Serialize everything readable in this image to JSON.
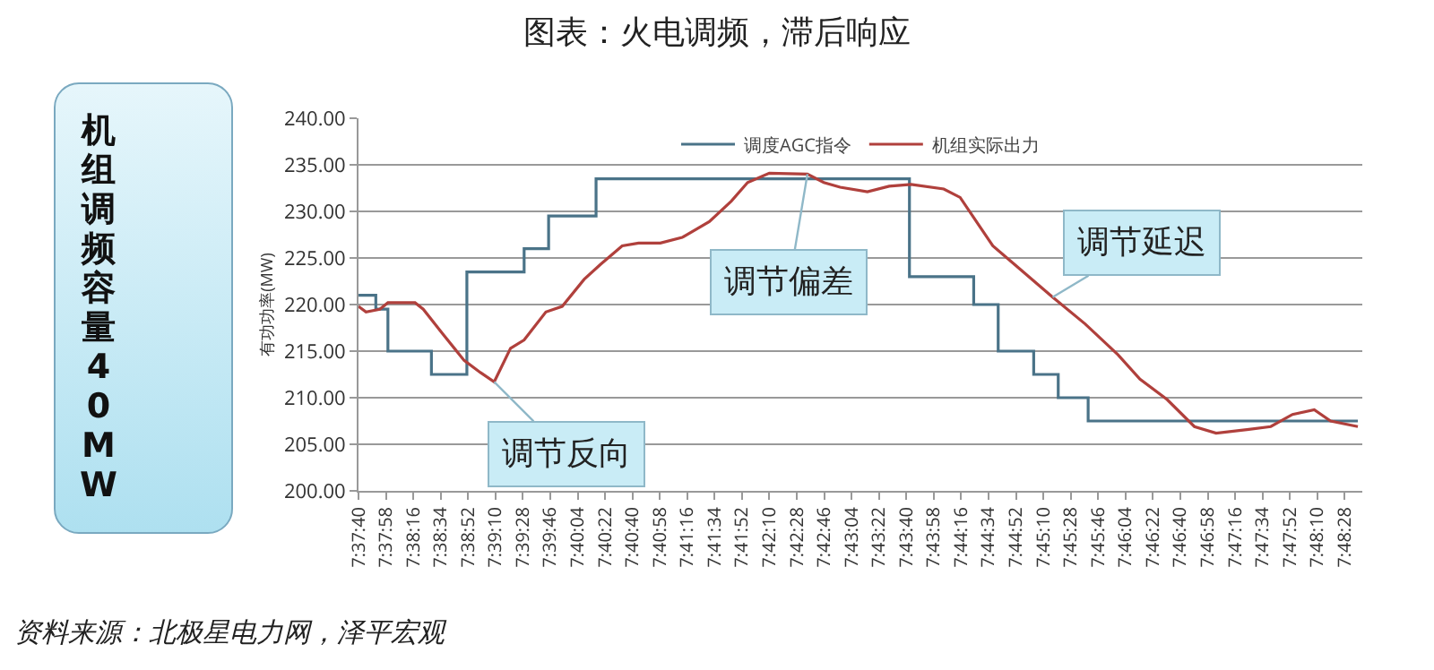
{
  "chart_data": {
    "type": "line",
    "title": "图表：火电调频，滞后响应",
    "ylabel": "有功功率(MW)",
    "xlim": [
      7.62778,
      7.811
    ],
    "ylim": [
      200,
      240
    ],
    "yticks": [
      {
        "value": 200,
        "label": "200.00"
      },
      {
        "value": 205,
        "label": "205.00"
      },
      {
        "value": 210,
        "label": "210.00"
      },
      {
        "value": 215,
        "label": "215.00"
      },
      {
        "value": 220,
        "label": "220.00"
      },
      {
        "value": 225,
        "label": "225.00"
      },
      {
        "value": 230,
        "label": "230.00"
      },
      {
        "value": 235,
        "label": "235.00"
      },
      {
        "value": 240,
        "label": "240.00"
      }
    ],
    "xticks": [
      {
        "value": 7.62778,
        "label": "7:37:40"
      },
      {
        "value": 7.63278,
        "label": "7:37:58"
      },
      {
        "value": 7.63778,
        "label": "7:38:16"
      },
      {
        "value": 7.64278,
        "label": "7:38:34"
      },
      {
        "value": 7.64778,
        "label": "7:38:52"
      },
      {
        "value": 7.65278,
        "label": "7:39:10"
      },
      {
        "value": 7.65778,
        "label": "7:39:28"
      },
      {
        "value": 7.66278,
        "label": "7:39:46"
      },
      {
        "value": 7.66778,
        "label": "7:40:04"
      },
      {
        "value": 7.67278,
        "label": "7:40:22"
      },
      {
        "value": 7.67778,
        "label": "7:40:40"
      },
      {
        "value": 7.68278,
        "label": "7:40:58"
      },
      {
        "value": 7.68778,
        "label": "7:41:16"
      },
      {
        "value": 7.69278,
        "label": "7:41:34"
      },
      {
        "value": 7.69778,
        "label": "7:41:52"
      },
      {
        "value": 7.70278,
        "label": "7:42:10"
      },
      {
        "value": 7.70778,
        "label": "7:42:28"
      },
      {
        "value": 7.71278,
        "label": "7:42:46"
      },
      {
        "value": 7.71778,
        "label": "7:43:04"
      },
      {
        "value": 7.72278,
        "label": "7:43:22"
      },
      {
        "value": 7.72778,
        "label": "7:43:40"
      },
      {
        "value": 7.73278,
        "label": "7:43:58"
      },
      {
        "value": 7.73778,
        "label": "7:44:16"
      },
      {
        "value": 7.74278,
        "label": "7:44:34"
      },
      {
        "value": 7.74778,
        "label": "7:44:52"
      },
      {
        "value": 7.75278,
        "label": "7:45:10"
      },
      {
        "value": 7.75778,
        "label": "7:45:28"
      },
      {
        "value": 7.76278,
        "label": "7:45:46"
      },
      {
        "value": 7.76778,
        "label": "7:46:04"
      },
      {
        "value": 7.77278,
        "label": "7:46:22"
      },
      {
        "value": 7.77778,
        "label": "7:46:40"
      },
      {
        "value": 7.78278,
        "label": "7:46:58"
      },
      {
        "value": 7.78778,
        "label": "7:47:16"
      },
      {
        "value": 7.79278,
        "label": "7:47:34"
      },
      {
        "value": 7.79778,
        "label": "7:47:52"
      },
      {
        "value": 7.80278,
        "label": "7:48:10"
      },
      {
        "value": 7.80778,
        "label": "7:48:28"
      }
    ],
    "series": [
      {
        "name": "调度AGC指令",
        "type": "step",
        "color": "#4a7388",
        "x": [
          7.62778,
          7.63094,
          7.63315,
          7.64109,
          7.64756,
          7.65801,
          7.66248,
          7.67114,
          7.72834,
          7.74007,
          7.74454,
          7.75102,
          7.7555,
          7.76096,
          7.81019
        ],
        "values": [
          221,
          219.5,
          215,
          212.5,
          223.5,
          226,
          229.5,
          233.5,
          223,
          220,
          215,
          212.5,
          210,
          207.5,
          207.5
        ]
      },
      {
        "name": "机组实际出力",
        "color": "#b0403c",
        "x": [
          7.62778,
          7.62915,
          7.63166,
          7.63315,
          7.6381,
          7.6396,
          7.64309,
          7.64706,
          7.65004,
          7.65255,
          7.65553,
          7.65801,
          7.66198,
          7.66496,
          7.66896,
          7.67194,
          7.67591,
          7.6789,
          7.68287,
          7.68686,
          7.69182,
          7.69582,
          7.6988,
          7.70277,
          7.70972,
          7.71271,
          7.71569,
          7.72067,
          7.72464,
          7.72864,
          7.73461,
          7.73759,
          7.74356,
          7.74753,
          7.75448,
          7.76045,
          7.76642,
          7.77042,
          7.77537,
          7.78035,
          7.78432,
          7.79029,
          7.79429,
          7.79826,
          7.80223,
          7.80521,
          7.81019
        ],
        "values": [
          219.8,
          219.2,
          219.5,
          220.2,
          220.2,
          219.5,
          216.9,
          214,
          212.7,
          211.7,
          215.3,
          216.2,
          219.2,
          219.8,
          222.7,
          224.3,
          226.3,
          226.6,
          226.6,
          227.2,
          228.9,
          231.1,
          233.1,
          234.1,
          234,
          233.1,
          232.6,
          232.1,
          232.7,
          232.9,
          232.4,
          231.5,
          226.3,
          224.3,
          220.8,
          217.9,
          214.6,
          212,
          209.8,
          206.9,
          206.2,
          206.6,
          206.9,
          208.2,
          208.7,
          207.5,
          206.9
        ]
      }
    ],
    "annotations": [
      "机组调频容量 40MW",
      "资料来源：北极星电力网，泽平宏观",
      {
        "text": "调节反向",
        "x": 7.65255,
        "y": 211.7
      },
      {
        "text": "调节偏差",
        "x": 7.70972,
        "y": 234
      },
      {
        "text": "调节延迟",
        "x": 7.75448,
        "y": 220.8
      }
    ],
    "grid": "y",
    "legend": "top",
    "marker": "none",
    "line_style": "solid"
  }
}
